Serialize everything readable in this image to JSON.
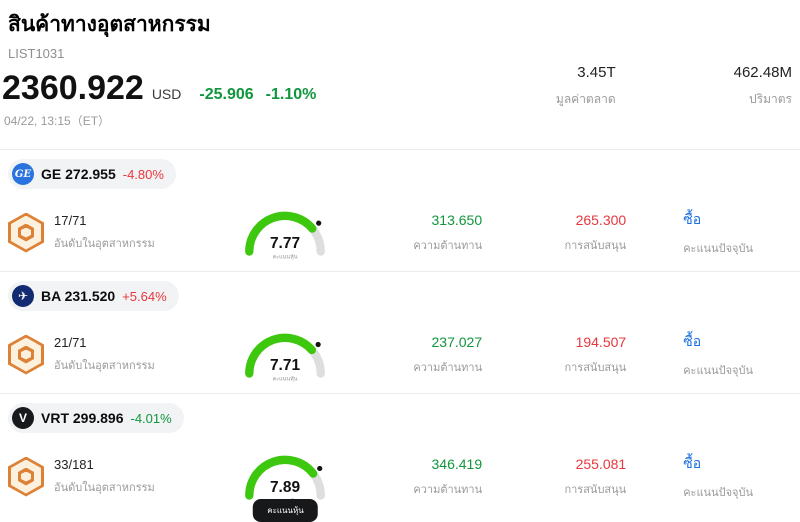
{
  "colors": {
    "green": "#10963c",
    "red": "#e8373d",
    "blue": "#1a6fe0",
    "gauge-green": "#3ec70f"
  },
  "header": {
    "title": "สินค้าทางอุตสาหกรรม",
    "list_id": "LIST1031",
    "price": "2360.922",
    "currency": "USD",
    "change": "-25.906",
    "change_pct": "-1.10%",
    "change_color": "#10963c",
    "timestamp": "04/22, 13:15（ET）",
    "stats": [
      {
        "value": "3.45T",
        "label": "มูลค่าตลาด"
      },
      {
        "value": "462.48M",
        "label": "ปริมาตร"
      }
    ]
  },
  "rows": [
    {
      "ticker": "GE",
      "price": "272.955",
      "change": "-4.80%",
      "change_color": "#e8373d",
      "logo": {
        "text": "GE",
        "bg": "#2a72dd"
      },
      "rank": "17/71",
      "rank_label": "อันดับในอุตสาหกรรม",
      "score": "7.77",
      "score_label": "คะแนนหุ้น",
      "resistance": "313.650",
      "resistance_label": "ความต้านทาน",
      "support": "265.300",
      "support_label": "การสนับสนุน",
      "action": "ซื้อ",
      "action_label": "คะแนนปัจจุบัน"
    },
    {
      "ticker": "BA",
      "price": "231.520",
      "change": "+5.64%",
      "change_color": "#e8373d",
      "logo": {
        "text": "✈",
        "bg": "#122a70"
      },
      "rank": "21/71",
      "rank_label": "อันดับในอุตสาหกรรม",
      "score": "7.71",
      "score_label": "คะแนนหุ้น",
      "resistance": "237.027",
      "resistance_label": "ความต้านทาน",
      "support": "194.507",
      "support_label": "การสนับสนุน",
      "action": "ซื้อ",
      "action_label": "คะแนนปัจจุบัน"
    },
    {
      "ticker": "VRT",
      "price": "299.896",
      "change": "-4.01%",
      "change_color": "#10963c",
      "logo": {
        "text": "V",
        "bg": "#17191c"
      },
      "rank": "33/181",
      "rank_label": "อันดับในอุตสาหกรรม",
      "score": "7.89",
      "score_label": "คะแนนหุ้น",
      "resistance": "346.419",
      "resistance_label": "ความต้านทาน",
      "support": "255.081",
      "support_label": "การสนับสนุน",
      "action": "ซื้อ",
      "action_label": "คะแนนปัจจุบัน"
    }
  ]
}
